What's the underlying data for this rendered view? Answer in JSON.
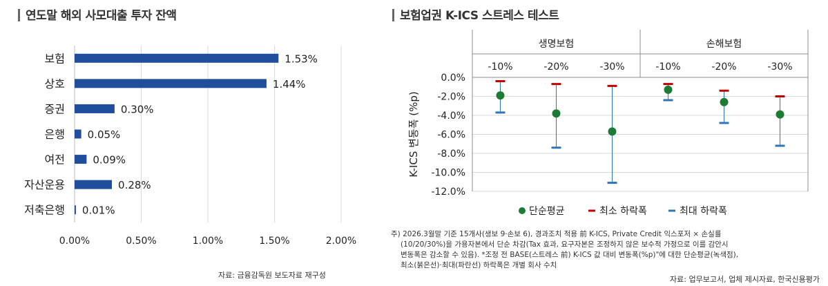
{
  "left_panel": {
    "title": "연도말 해외 사모대출 투자 잔액",
    "source": "자료: 금융감독원 보도자료 재구성"
  },
  "right_panel": {
    "title": "보험업권 K-ICS 스트레스 테스트",
    "note_lines": [
      "주) 2026.3월말 기준 15개사(생보 9·손보 6), 경과조치 적용 前 K-ICS, Private Credit 익스포저 × 손실률",
      "(10/20/30%)을 가용자본에서 단순 차감(Tax 효과, 요구자본은 조정하지 않은 보수적 가정으로 이를 감안시",
      "변동폭은 감소할 수 있음). *조정 전 BASE(스트레스 前) K-ICS 값 대비 변동폭(%p)\"에 대한 단순평균(녹색점),",
      "최소(붉은선)·최대(파란선) 하락폭은 개별 회사 수치"
    ],
    "source": "자료: 업무보고서, 업체 제시자료, 한국신용평가"
  },
  "colors": {
    "bar": "#1f4e9c",
    "avg": "#1e7b34",
    "min": "#c00000",
    "max": "#2e75b6",
    "grid": "#d9d9d9"
  },
  "chart_data": [
    {
      "type": "bar",
      "orientation": "horizontal",
      "categories": [
        "보험",
        "상호",
        "증권",
        "은행",
        "여전",
        "자산운용",
        "저축은행"
      ],
      "values": [
        1.53,
        1.44,
        0.3,
        0.05,
        0.09,
        0.28,
        0.01
      ],
      "value_labels": [
        "1.53%",
        "1.44%",
        "0.30%",
        "0.05%",
        "0.09%",
        "0.28%",
        "0.01%"
      ],
      "xlim": [
        0,
        2.0
      ],
      "xticks": [
        0,
        0.5,
        1.0,
        1.5,
        2.0
      ],
      "xtick_labels": [
        "0.00%",
        "0.50%",
        "1.00%",
        "1.50%",
        "2.00%"
      ],
      "grid": true
    },
    {
      "type": "scatter",
      "groups": [
        {
          "label": "생명보험",
          "scenarios": [
            "-10%",
            "-20%",
            "-30%"
          ]
        },
        {
          "label": "손해보험",
          "scenarios": [
            "-10%",
            "-20%",
            "-30%"
          ]
        }
      ],
      "series": [
        {
          "name": "단순평균",
          "values": [
            -1.9,
            -3.8,
            -5.7,
            -1.3,
            -2.6,
            -3.9
          ]
        },
        {
          "name": "최소 하락폭",
          "values": [
            -0.4,
            -0.7,
            -0.9,
            -0.7,
            -1.4,
            -2.0
          ]
        },
        {
          "name": "최대 하락폭",
          "values": [
            -3.7,
            -7.4,
            -11.1,
            -2.4,
            -4.8,
            -7.2
          ]
        }
      ],
      "ylabel": "K-ICS 변동폭 (%p)",
      "ylim": [
        -12.0,
        0.0
      ],
      "yticks": [
        0,
        -2,
        -4,
        -6,
        -8,
        -10,
        -12
      ],
      "ytick_labels": [
        "0.0%",
        "-2.0%",
        "-4.0%",
        "-6.0%",
        "-8.0%",
        "-10.0%",
        "-12.0%"
      ],
      "legend_position": "bottom",
      "grid": true
    }
  ]
}
